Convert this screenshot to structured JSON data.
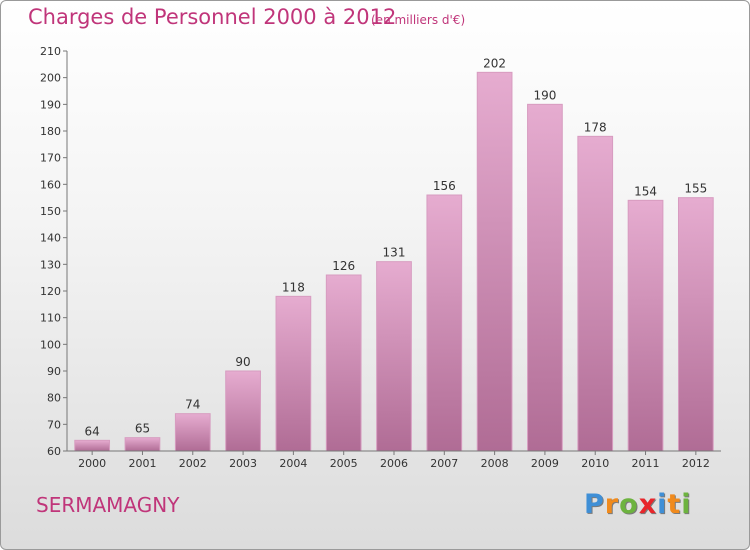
{
  "header": {
    "title": "Charges de Personnel 2000 à 2012",
    "subtitle": "(en milliers d'€)"
  },
  "footer": {
    "commune": "SERMAMAGNY",
    "logo_letters": [
      "P",
      "r",
      "o",
      "x",
      "i",
      "t",
      "i"
    ],
    "logo_colors": [
      "#3f8fd6",
      "#f08a1c",
      "#6db33f",
      "#e8262b",
      "#3f8fd6",
      "#f08a1c",
      "#6db33f"
    ]
  },
  "colors": {
    "bar_top": "#e6acd0",
    "bar_bottom": "#b06c95",
    "title": "#c0357a"
  },
  "chart_data": {
    "type": "bar",
    "categories": [
      "2000",
      "2001",
      "2002",
      "2003",
      "2004",
      "2005",
      "2006",
      "2007",
      "2008",
      "2009",
      "2010",
      "2011",
      "2012"
    ],
    "values": [
      64,
      65,
      74,
      90,
      118,
      126,
      131,
      156,
      202,
      190,
      178,
      154,
      155
    ],
    "title": "Charges de Personnel 2000 à 2012",
    "ylim": [
      60,
      210
    ],
    "yticks": [
      60,
      70,
      80,
      90,
      100,
      110,
      120,
      130,
      140,
      150,
      160,
      170,
      180,
      190,
      200,
      210
    ],
    "grid": false,
    "data_labels": true
  }
}
